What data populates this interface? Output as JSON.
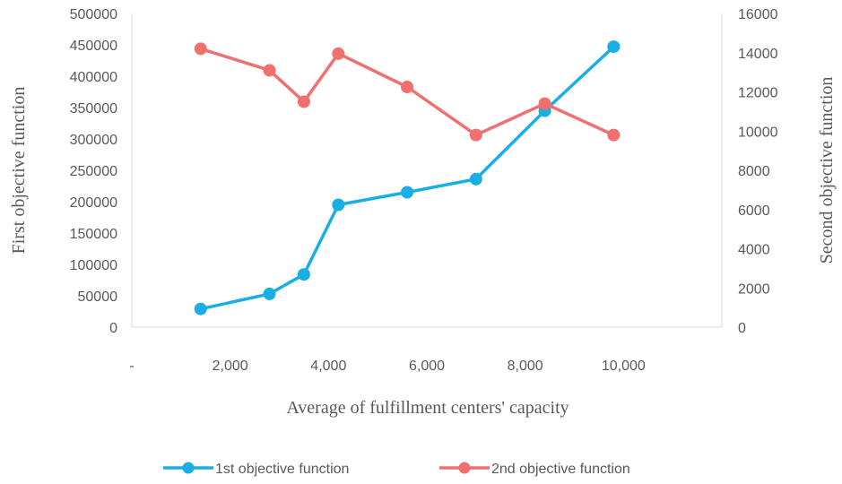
{
  "chart_data": {
    "type": "line",
    "xlabel": "Average of fulfillment centers' capacity",
    "ylabel_left": "First objective function",
    "ylabel_right": "Second objective function",
    "x_ticks": [
      "-",
      "2,000",
      "4,000",
      "6,000",
      "8,000",
      "10,000"
    ],
    "x_tick_values": [
      0,
      2000,
      4000,
      6000,
      8000,
      10000
    ],
    "xlim": [
      0,
      12000
    ],
    "y_left_ticks": [
      "0",
      "50000",
      "100000",
      "150000",
      "200000",
      "250000",
      "300000",
      "350000",
      "400000",
      "450000",
      "500000"
    ],
    "y_left_tick_values": [
      0,
      50000,
      100000,
      150000,
      200000,
      250000,
      300000,
      350000,
      400000,
      450000,
      500000
    ],
    "ylim_left": [
      0,
      500000
    ],
    "y_right_ticks": [
      "0",
      "2000",
      "4000",
      "6000",
      "8000",
      "10000",
      "12000",
      "14000",
      "16000"
    ],
    "y_right_tick_values": [
      0,
      2000,
      4000,
      6000,
      8000,
      10000,
      12000,
      14000,
      16000
    ],
    "ylim_right": [
      0,
      16000
    ],
    "grid": false,
    "legend_position": "bottom",
    "x": [
      1400,
      2800,
      3500,
      4200,
      5600,
      7000,
      8400,
      9800
    ],
    "series": [
      {
        "name": "1st objective function",
        "axis": "left",
        "color": "#1aaee6",
        "values": [
          29000,
          53000,
          84000,
          195000,
          215000,
          236000,
          345000,
          447000
        ]
      },
      {
        "name": "2nd objective function",
        "axis": "right",
        "color": "#f07070",
        "values": [
          14200,
          13100,
          11500,
          13950,
          12250,
          9800,
          11400,
          9800
        ]
      }
    ]
  }
}
